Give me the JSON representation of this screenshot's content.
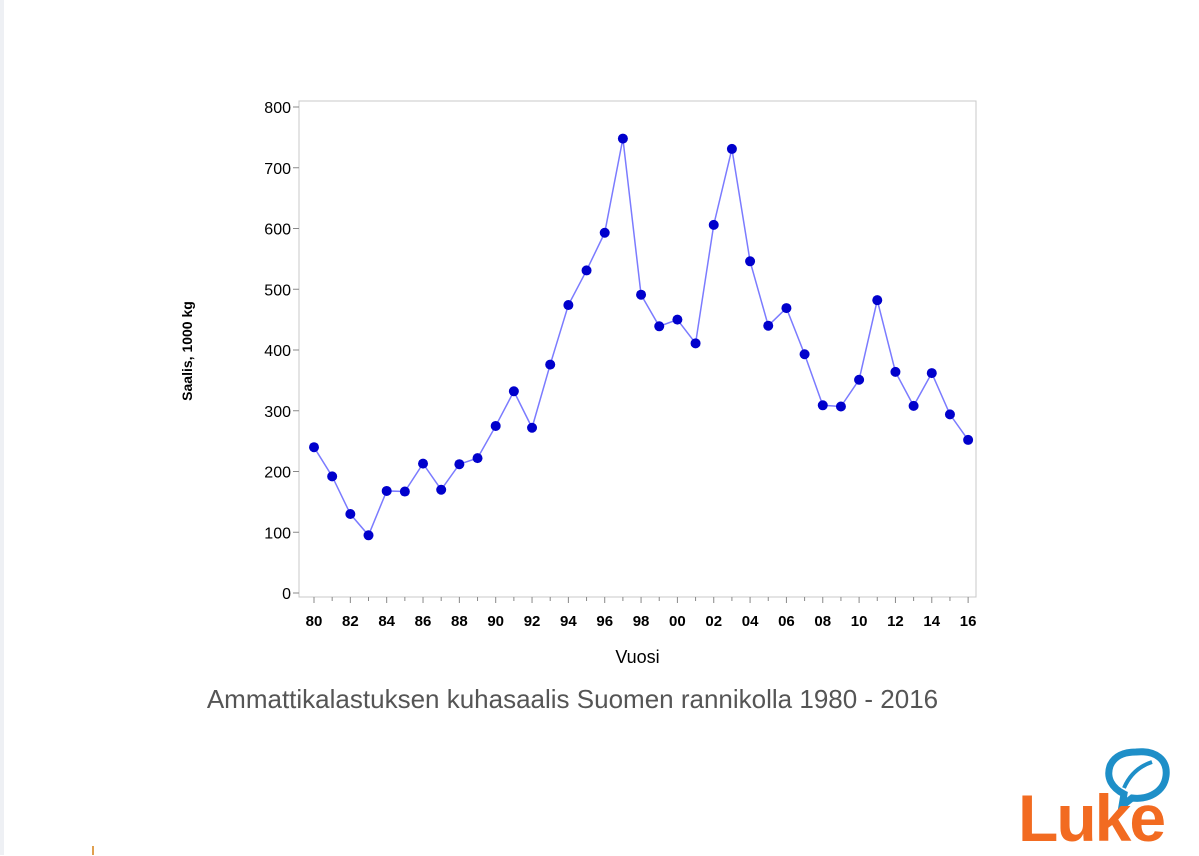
{
  "caption": "Ammattikalastuksen kuhasaalis Suomen rannikolla 1980 - 2016",
  "logo": {
    "text": "Luke",
    "color": "#f26b21",
    "leaf_color": "#1e8fc8"
  },
  "chart_data": {
    "type": "line",
    "title": "",
    "xlabel": "Vuosi",
    "ylabel": "Saalis, 1000 kg",
    "x": [
      "80",
      "81",
      "82",
      "83",
      "84",
      "85",
      "86",
      "87",
      "88",
      "89",
      "90",
      "91",
      "92",
      "93",
      "94",
      "95",
      "96",
      "97",
      "98",
      "99",
      "00",
      "01",
      "02",
      "03",
      "04",
      "05",
      "06",
      "07",
      "08",
      "09",
      "10",
      "11",
      "12",
      "13",
      "14",
      "15",
      "16"
    ],
    "x_tick_labels": [
      "80",
      "82",
      "84",
      "86",
      "88",
      "90",
      "92",
      "94",
      "96",
      "98",
      "00",
      "02",
      "04",
      "06",
      "08",
      "10",
      "12",
      "14",
      "16"
    ],
    "y_ticks": [
      0,
      100,
      200,
      300,
      400,
      500,
      600,
      700,
      800
    ],
    "ylim": [
      0,
      800
    ],
    "series": [
      {
        "values": [
          240,
          192,
          130,
          95,
          168,
          167,
          213,
          170,
          212,
          222,
          275,
          332,
          272,
          376,
          474,
          531,
          593,
          748,
          491,
          439,
          450,
          411,
          606,
          731,
          546,
          440,
          469,
          393,
          309,
          307,
          351,
          482,
          364,
          308,
          362,
          294,
          252
        ],
        "color": "#0000cc",
        "line_color": "#7b7bff"
      }
    ],
    "grid": false,
    "legend": "none"
  }
}
